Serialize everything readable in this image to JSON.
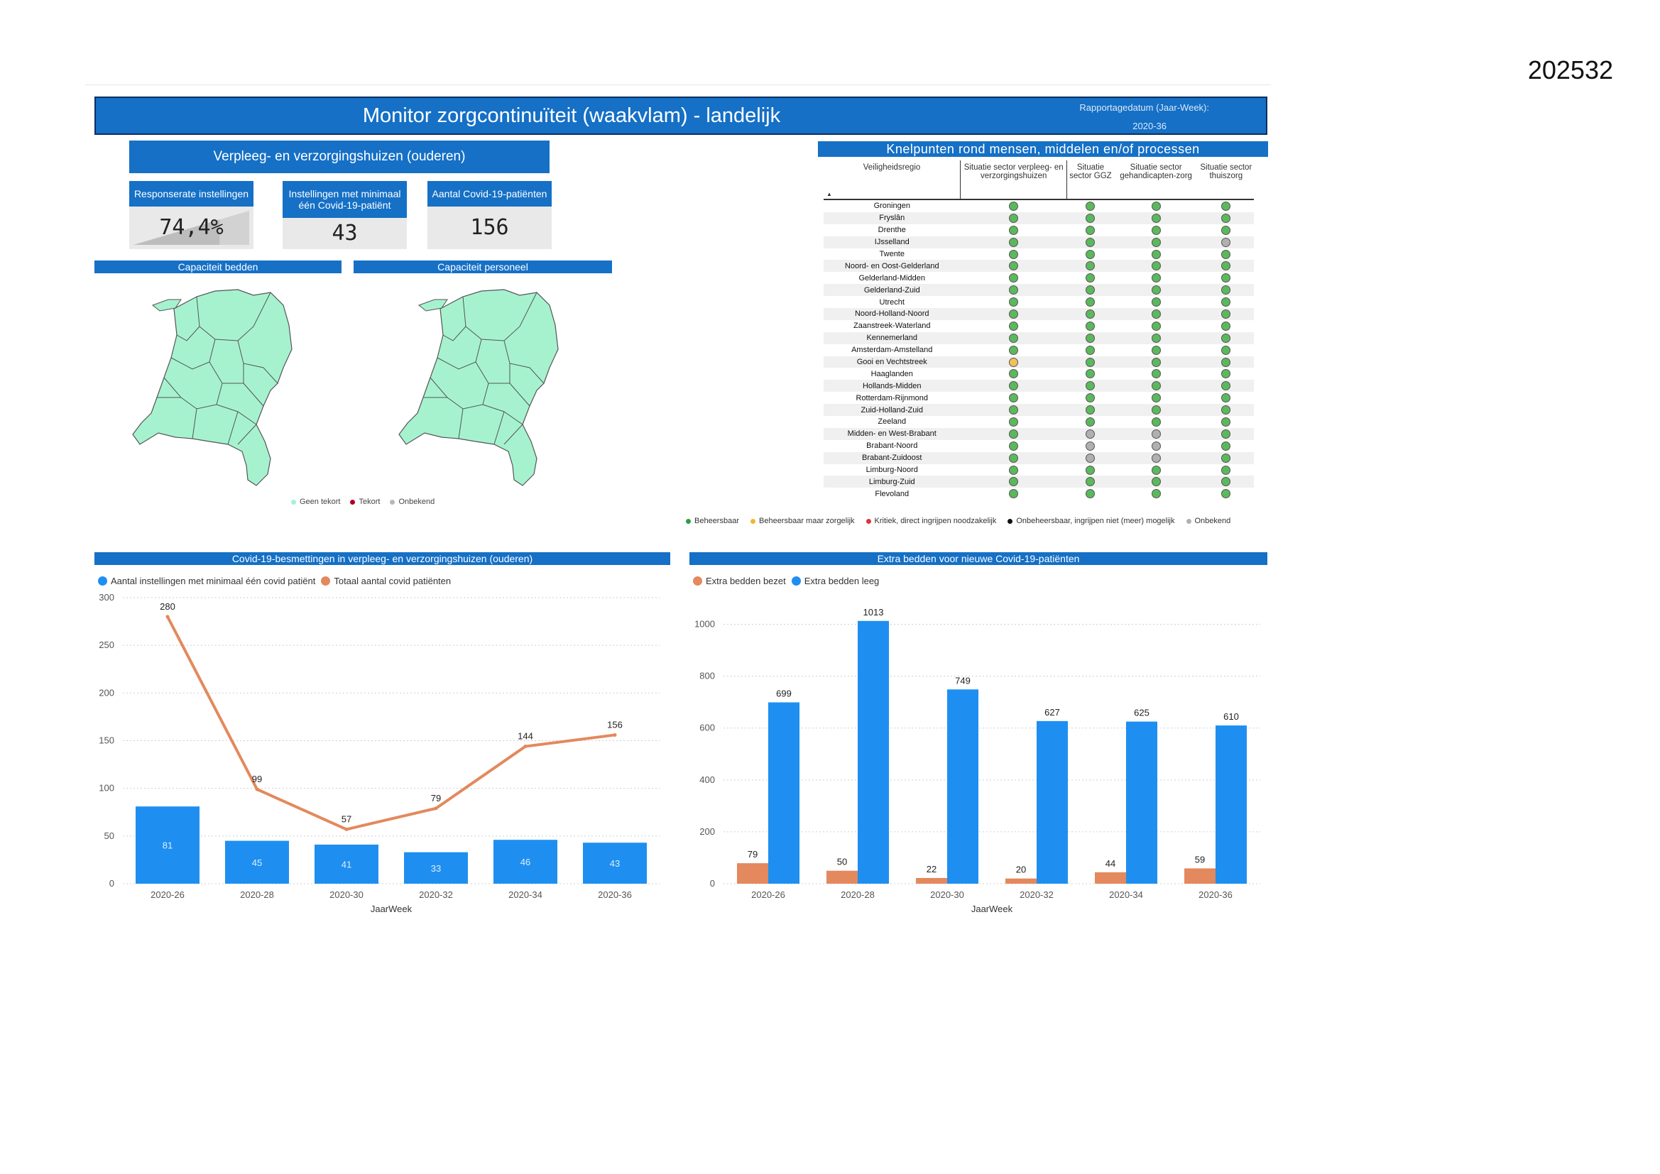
{
  "doc_number": "202532",
  "header": {
    "title": "Monitor zorgcontinuïteit (waakvlam) - landelijk",
    "date_label": "Rapportagedatum (Jaar-Week):",
    "date_value": "2020-36"
  },
  "sector": {
    "title": "Verpleeg- en verzorgingshuizen (ouderen)"
  },
  "kpis": [
    {
      "label": "Responserate instellingen",
      "value": "74,4%",
      "fill": 0.744
    },
    {
      "label": "Instellingen met minimaal één Covid-19-patiënt",
      "value": "43"
    },
    {
      "label": "Aantal Covid-19-patiënten",
      "value": "156"
    }
  ],
  "maps": {
    "beds_title": "Capaciteit bedden",
    "staff_title": "Capaciteit personeel",
    "region_color": "#a6f2cf",
    "legend": [
      {
        "label": "Geen tekort",
        "color": "#a6f2cf"
      },
      {
        "label": "Tekort",
        "color": "#b00020"
      },
      {
        "label": "Onbekend",
        "color": "#b7b7b7"
      }
    ]
  },
  "knelpunten": {
    "title": "Knelpunten rond mensen, middelen en/of processen",
    "columns": [
      "Veiligheidsregio",
      "Situatie sector verpleeg- en verzorgingshuizen",
      "Situatie sector GGZ",
      "Situatie sector gehandicapten-zorg",
      "Situatie sector thuiszorg"
    ],
    "sort_indicator": "▲",
    "rows": [
      {
        "region": "Groningen",
        "status": [
          "g",
          "g",
          "g",
          "g"
        ]
      },
      {
        "region": "Fryslân",
        "status": [
          "g",
          "g",
          "g",
          "g"
        ]
      },
      {
        "region": "Drenthe",
        "status": [
          "g",
          "g",
          "g",
          "g"
        ]
      },
      {
        "region": "IJsselland",
        "status": [
          "g",
          "g",
          "g",
          "u"
        ]
      },
      {
        "region": "Twente",
        "status": [
          "g",
          "g",
          "g",
          "g"
        ]
      },
      {
        "region": "Noord- en Oost-Gelderland",
        "status": [
          "g",
          "g",
          "g",
          "g"
        ]
      },
      {
        "region": "Gelderland-Midden",
        "status": [
          "g",
          "g",
          "g",
          "g"
        ]
      },
      {
        "region": "Gelderland-Zuid",
        "status": [
          "g",
          "g",
          "g",
          "g"
        ]
      },
      {
        "region": "Utrecht",
        "status": [
          "g",
          "g",
          "g",
          "g"
        ]
      },
      {
        "region": "Noord-Holland-Noord",
        "status": [
          "g",
          "g",
          "g",
          "g"
        ]
      },
      {
        "region": "Zaanstreek-Waterland",
        "status": [
          "g",
          "g",
          "g",
          "g"
        ]
      },
      {
        "region": "Kennemerland",
        "status": [
          "g",
          "g",
          "g",
          "g"
        ]
      },
      {
        "region": "Amsterdam-Amstelland",
        "status": [
          "g",
          "g",
          "g",
          "g"
        ]
      },
      {
        "region": "Gooi en Vechtstreek",
        "status": [
          "y",
          "g",
          "g",
          "g"
        ]
      },
      {
        "region": "Haaglanden",
        "status": [
          "g",
          "g",
          "g",
          "g"
        ]
      },
      {
        "region": "Hollands-Midden",
        "status": [
          "g",
          "g",
          "g",
          "g"
        ]
      },
      {
        "region": "Rotterdam-Rijnmond",
        "status": [
          "g",
          "g",
          "g",
          "g"
        ]
      },
      {
        "region": "Zuid-Holland-Zuid",
        "status": [
          "g",
          "g",
          "g",
          "g"
        ]
      },
      {
        "region": "Zeeland",
        "status": [
          "g",
          "g",
          "g",
          "g"
        ]
      },
      {
        "region": "Midden- en West-Brabant",
        "status": [
          "g",
          "u",
          "u",
          "g"
        ]
      },
      {
        "region": "Brabant-Noord",
        "status": [
          "g",
          "u",
          "u",
          "g"
        ]
      },
      {
        "region": "Brabant-Zuidoost",
        "status": [
          "g",
          "u",
          "u",
          "g"
        ]
      },
      {
        "region": "Limburg-Noord",
        "status": [
          "g",
          "g",
          "g",
          "g"
        ]
      },
      {
        "region": "Limburg-Zuid",
        "status": [
          "g",
          "g",
          "g",
          "g"
        ]
      },
      {
        "region": "Flevoland",
        "status": [
          "g",
          "g",
          "g",
          "g"
        ]
      }
    ],
    "status_colors": {
      "g": "#5cb85c",
      "y": "#f5c05a",
      "r": "#d9363e",
      "b": "#111111",
      "u": "#b0b0b0"
    },
    "legend": [
      {
        "label": "Beheersbaar",
        "color": "#2e9e3e"
      },
      {
        "label": "Beheersbaar maar zorgelijk",
        "color": "#f2b632"
      },
      {
        "label": "Kritiek, direct ingrijpen noodzakelijk",
        "color": "#d9363e"
      },
      {
        "label": "Onbeheersbaar, ingrijpen niet (meer) mogelijk",
        "color": "#111111"
      },
      {
        "label": "Onbekend",
        "color": "#b0b0b0"
      }
    ]
  },
  "chart_data": [
    {
      "type": "bar+line",
      "title": "Covid-19-besmettingen in verpleeg- en verzorgingshuizen (ouderen)",
      "xlabel": "JaarWeek",
      "categories": [
        "2020-26",
        "2020-28",
        "2020-30",
        "2020-32",
        "2020-34",
        "2020-36"
      ],
      "series": [
        {
          "name": "Aantal instellingen met minimaal één covid patiënt",
          "kind": "bar",
          "color": "#1e8ff0",
          "values": [
            81,
            45,
            41,
            33,
            46,
            43
          ]
        },
        {
          "name": "Totaal aantal covid patiënten",
          "kind": "line",
          "color": "#e3895d",
          "values": [
            280,
            99,
            57,
            79,
            144,
            156
          ]
        }
      ],
      "yticks": [
        0,
        50,
        100,
        150,
        200,
        250,
        300
      ],
      "ylim": [
        0,
        300
      ],
      "grid": true,
      "legend_position": "top-left"
    },
    {
      "type": "bar",
      "title": "Extra bedden voor nieuwe Covid-19-patiënten",
      "xlabel": "JaarWeek",
      "categories": [
        "2020-26",
        "2020-28",
        "2020-30",
        "2020-32",
        "2020-34",
        "2020-36"
      ],
      "series": [
        {
          "name": "Extra bedden bezet",
          "color": "#e3895d",
          "values": [
            79,
            50,
            22,
            20,
            44,
            59
          ]
        },
        {
          "name": "Extra bedden leeg",
          "color": "#1e8ff0",
          "values": [
            699,
            1013,
            749,
            627,
            625,
            610
          ]
        }
      ],
      "yticks": [
        0,
        200,
        400,
        600,
        800,
        1000
      ],
      "ylim": [
        0,
        1100
      ],
      "grid": true,
      "legend_position": "top-left"
    }
  ]
}
